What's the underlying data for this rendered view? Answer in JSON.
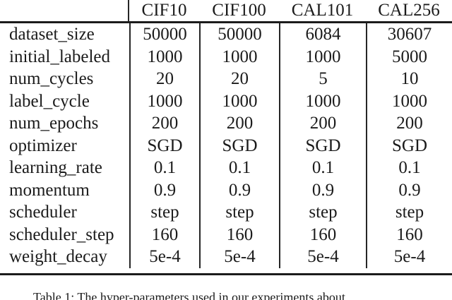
{
  "page": {
    "background": "#ffffff",
    "text_color": "#1b1b1b",
    "rule_color": "#1c1c1c"
  },
  "table": {
    "header": {
      "columns": [
        "CIF10",
        "CIF100",
        "CAL101",
        "CAL256"
      ]
    },
    "rows": [
      {
        "label": "dataset_size",
        "values": [
          "50000",
          "50000",
          "6084",
          "30607"
        ]
      },
      {
        "label": "initial_labeled",
        "values": [
          "1000",
          "1000",
          "1000",
          "5000"
        ]
      },
      {
        "label": "num_cycles",
        "values": [
          "20",
          "20",
          "5",
          "10"
        ]
      },
      {
        "label": "label_cycle",
        "values": [
          "1000",
          "1000",
          "1000",
          "1000"
        ]
      },
      {
        "label": "num_epochs",
        "values": [
          "200",
          "200",
          "200",
          "200"
        ]
      },
      {
        "label": "optimizer",
        "values": [
          "SGD",
          "SGD",
          "SGD",
          "SGD"
        ]
      },
      {
        "label": "learning_rate",
        "values": [
          "0.1",
          "0.1",
          "0.1",
          "0.1"
        ]
      },
      {
        "label": "momentum",
        "values": [
          "0.9",
          "0.9",
          "0.9",
          "0.9"
        ]
      },
      {
        "label": "scheduler",
        "values": [
          "step",
          "step",
          "step",
          "step"
        ]
      },
      {
        "label": "scheduler_step",
        "values": [
          "160",
          "160",
          "160",
          "160"
        ]
      },
      {
        "label": "weight_decay",
        "values": [
          "5e-4",
          "5e-4",
          "5e-4",
          "5e-4"
        ]
      }
    ]
  },
  "caption": {
    "text": "Table 1: The hyper-parameters used in our experiments about"
  }
}
